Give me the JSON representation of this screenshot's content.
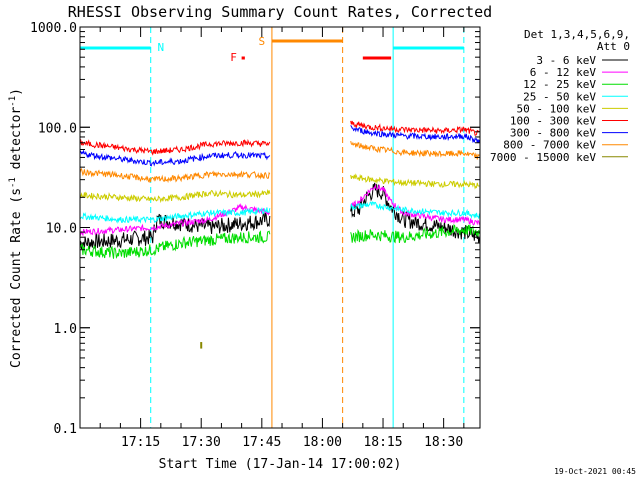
{
  "chart_data": {
    "type": "line",
    "title": "RHESSI Observing Summary Count Rates, Corrected",
    "xlabel": "Start Time (17-Jan-14 17:00:02)",
    "ylabel_main": "Corrected Count Rate (s",
    "ylabel_sup1": "-1",
    "ylabel_mid": " detector",
    "ylabel_sup2": "-1",
    "ylabel_end": ")",
    "yscale": "log",
    "ylim": [
      0.1,
      1000
    ],
    "yticks": [
      0.1,
      1,
      10,
      100,
      1000
    ],
    "yticklabels": [
      "0.1",
      "1.0",
      "10.0",
      "100.0",
      "1000.0"
    ],
    "xlim_minutes": [
      0,
      99
    ],
    "xticks_minutes": [
      15,
      30,
      45,
      60,
      75,
      90
    ],
    "xticklabels": [
      "17:15",
      "17:30",
      "17:45",
      "18:00",
      "18:15",
      "18:30"
    ],
    "legend_header": [
      "Det 1,3,4,5,6,9,",
      "Att 0"
    ],
    "series": [
      {
        "name": "3 - 6 keV",
        "color": "#000000",
        "segments": [
          {
            "x": [
              0,
              10,
              18,
              19,
              25,
              32,
              40,
              47
            ],
            "y": [
              7,
              7.5,
              8,
              12,
              11,
              10,
              11,
              12
            ]
          },
          {
            "x": [
              67,
              69,
              71,
              73,
              75,
              77,
              80,
              90,
              95,
              99
            ],
            "y": [
              14,
              15,
              20,
              24,
              22,
              16,
              12,
              10,
              9,
              8
            ]
          }
        ]
      },
      {
        "name": "6 - 12 keV",
        "color": "#ff00ff",
        "segments": [
          {
            "x": [
              0,
              10,
              18,
              25,
              32,
              40,
              47
            ],
            "y": [
              9,
              9.5,
              10,
              11,
              12,
              16,
              14
            ]
          },
          {
            "x": [
              67,
              69,
              71,
              73,
              75,
              77,
              80,
              90,
              95,
              99
            ],
            "y": [
              16,
              18,
              22,
              26,
              24,
              18,
              14,
              12,
              12,
              11
            ]
          }
        ]
      },
      {
        "name": "12 - 25 keV",
        "color": "#00dd00",
        "segments": [
          {
            "x": [
              0,
              10,
              18,
              25,
              32,
              40,
              47
            ],
            "y": [
              6,
              5.5,
              6,
              7,
              7.5,
              8,
              8
            ]
          },
          {
            "x": [
              67,
              72,
              80,
              90,
              95,
              99
            ],
            "y": [
              8,
              8.5,
              8,
              9,
              9.5,
              9
            ]
          }
        ]
      },
      {
        "name": "25 - 50 keV",
        "color": "#00ffff",
        "segments": [
          {
            "x": [
              0,
              10,
              18,
              25,
              32,
              40,
              47
            ],
            "y": [
              13,
              12,
              12,
              13,
              14,
              14,
              15
            ]
          },
          {
            "x": [
              67,
              72,
              80,
              90,
              95,
              99
            ],
            "y": [
              16,
              17,
              15,
              14,
              14,
              13
            ]
          }
        ]
      },
      {
        "name": "50 - 100 keV",
        "color": "#cccc00",
        "segments": [
          {
            "x": [
              0,
              10,
              18,
              25,
              32,
              40,
              47
            ],
            "y": [
              21,
              20,
              19,
              20,
              22,
              21,
              22
            ]
          },
          {
            "x": [
              67,
              72,
              80,
              90,
              95,
              99
            ],
            "y": [
              32,
              30,
              28,
              27,
              27,
              26
            ]
          }
        ]
      },
      {
        "name": "100 - 300 keV",
        "color": "#ff0000",
        "segments": [
          {
            "x": [
              0,
              10,
              18,
              25,
              32,
              40,
              47
            ],
            "y": [
              70,
              62,
              57,
              60,
              68,
              70,
              68
            ]
          },
          {
            "x": [
              67,
              72,
              80,
              90,
              95,
              99
            ],
            "y": [
              110,
              100,
              95,
              92,
              95,
              85
            ]
          }
        ]
      },
      {
        "name": "300 - 800 keV",
        "color": "#0000ff",
        "segments": [
          {
            "x": [
              0,
              10,
              18,
              25,
              32,
              40,
              47
            ],
            "y": [
              55,
              48,
              44,
              46,
              52,
              53,
              51
            ]
          },
          {
            "x": [
              67,
              72,
              80,
              90,
              95,
              99
            ],
            "y": [
              98,
              88,
              82,
              80,
              82,
              72
            ]
          }
        ]
      },
      {
        "name": "800 - 7000 keV",
        "color": "#ff8800",
        "segments": [
          {
            "x": [
              0,
              10,
              18,
              25,
              32,
              40,
              47
            ],
            "y": [
              36,
              33,
              30,
              31,
              34,
              34,
              33
            ]
          },
          {
            "x": [
              67,
              72,
              80,
              90,
              95,
              99
            ],
            "y": [
              68,
              62,
              56,
              54,
              55,
              50
            ]
          }
        ]
      },
      {
        "name": "7000 - 15000 keV",
        "color": "#888800",
        "segments": [
          {
            "x": [
              30,
              30.5
            ],
            "y": [
              0.62,
              0.72
            ]
          }
        ]
      }
    ],
    "annotations": [
      {
        "label": "N",
        "x": 20,
        "color": "#00ffff"
      },
      {
        "label": "F",
        "x": 38,
        "color": "#ff0000"
      },
      {
        "label": "S",
        "x": 45,
        "color": "#ff8800"
      }
    ],
    "status_bars": [
      {
        "state": "night",
        "color": "#00ffff",
        "x_start": 0,
        "x_end": 17.5
      },
      {
        "state": "night",
        "color": "#00ffff",
        "x_start": 77.5,
        "x_end": 95
      },
      {
        "state": "saa",
        "color": "#ff8800",
        "x_start": 47.5,
        "x_end": 65
      },
      {
        "state": "flare",
        "color": "#ff0000",
        "x_start": 40,
        "x_end": 40.8
      },
      {
        "state": "flare",
        "color": "#ff0000",
        "x_start": 70,
        "x_end": 77
      }
    ],
    "vlines": [
      {
        "x": 0,
        "color": "#00ffff",
        "style": "solid"
      },
      {
        "x": 17.5,
        "color": "#00ffff",
        "style": "dashed"
      },
      {
        "x": 47.5,
        "color": "#ff8800",
        "style": "solid"
      },
      {
        "x": 65,
        "color": "#ff8800",
        "style": "dashed"
      },
      {
        "x": 77.5,
        "color": "#00ffff",
        "style": "solid"
      },
      {
        "x": 95,
        "color": "#00ffff",
        "style": "dashed"
      }
    ]
  },
  "footer": {
    "timestamp": "19-Oct-2021 00:45"
  }
}
